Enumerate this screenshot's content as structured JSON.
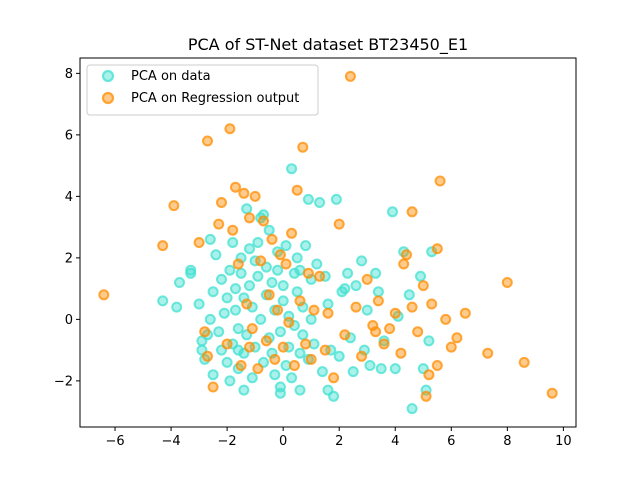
{
  "chart_data": {
    "type": "scatter",
    "title": "PCA of ST-Net dataset BT23450_E1",
    "xlabel": "",
    "ylabel": "",
    "xlim": [
      -7.25,
      10.45
    ],
    "ylim": [
      -3.5,
      8.5
    ],
    "xticks": [
      -6,
      -4,
      -2,
      0,
      2,
      4,
      6,
      8,
      10
    ],
    "yticks": [
      -2,
      0,
      2,
      4,
      6,
      8
    ],
    "xtick_labels": [
      "−6",
      "−4",
      "−2",
      "0",
      "2",
      "4",
      "6",
      "8",
      "10"
    ],
    "ytick_labels": [
      "−2",
      "0",
      "2",
      "4",
      "6",
      "8"
    ],
    "grid": false,
    "legend_position": "upper-left",
    "series": [
      {
        "name": "PCA on data",
        "color": "#40E0D0",
        "points": [
          [
            -4.3,
            0.6
          ],
          [
            -3.8,
            0.4
          ],
          [
            -3.7,
            1.2
          ],
          [
            -3.3,
            1.5
          ],
          [
            -3.3,
            1.6
          ],
          [
            -3.0,
            0.5
          ],
          [
            -2.9,
            -0.7
          ],
          [
            -2.9,
            -1.0
          ],
          [
            -2.8,
            -1.3
          ],
          [
            -2.7,
            -0.5
          ],
          [
            -2.6,
            0.0
          ],
          [
            -2.6,
            2.6
          ],
          [
            -2.5,
            -1.8
          ],
          [
            -2.5,
            0.9
          ],
          [
            -2.4,
            2.1
          ],
          [
            -2.3,
            -0.4
          ],
          [
            -2.2,
            1.3
          ],
          [
            -2.2,
            -1.0
          ],
          [
            -2.1,
            0.2
          ],
          [
            -2.0,
            -1.4
          ],
          [
            -2.0,
            0.7
          ],
          [
            -1.9,
            1.6
          ],
          [
            -1.9,
            -2.0
          ],
          [
            -1.8,
            2.5
          ],
          [
            -1.8,
            -0.8
          ],
          [
            -1.7,
            1.0
          ],
          [
            -1.7,
            0.3
          ],
          [
            -1.6,
            -1.6
          ],
          [
            -1.6,
            -0.3
          ],
          [
            -1.5,
            2.0
          ],
          [
            -1.5,
            1.5
          ],
          [
            -1.4,
            0.7
          ],
          [
            -1.4,
            -1.1
          ],
          [
            -1.3,
            3.6
          ],
          [
            -1.3,
            -0.5
          ],
          [
            -1.2,
            2.3
          ],
          [
            -1.2,
            1.1
          ],
          [
            -1.1,
            -1.9
          ],
          [
            -1.1,
            0.4
          ],
          [
            -1.0,
            1.9
          ],
          [
            -1.0,
            -0.9
          ],
          [
            -0.9,
            2.5
          ],
          [
            -0.9,
            1.4
          ],
          [
            -0.8,
            0.0
          ],
          [
            -0.8,
            3.3
          ],
          [
            -0.7,
            3.4
          ],
          [
            -0.7,
            -1.4
          ],
          [
            -0.6,
            1.7
          ],
          [
            -0.6,
            0.8
          ],
          [
            -0.5,
            -0.6
          ],
          [
            -0.5,
            2.9
          ],
          [
            -0.4,
            -1.1
          ],
          [
            -0.4,
            1.2
          ],
          [
            -0.3,
            0.3
          ],
          [
            -0.3,
            -1.8
          ],
          [
            -0.2,
            2.2
          ],
          [
            -0.2,
            1.6
          ],
          [
            -0.1,
            -0.4
          ],
          [
            -0.1,
            -2.2
          ],
          [
            0.0,
            0.6
          ],
          [
            0.0,
            1.1
          ],
          [
            0.1,
            -1.5
          ],
          [
            0.1,
            2.4
          ],
          [
            0.2,
            -0.9
          ],
          [
            0.2,
            0.1
          ],
          [
            0.3,
            4.9
          ],
          [
            0.3,
            -1.9
          ],
          [
            0.4,
            1.5
          ],
          [
            0.4,
            -0.2
          ],
          [
            0.5,
            2.0
          ],
          [
            0.5,
            0.9
          ],
          [
            0.6,
            -1.1
          ],
          [
            0.6,
            1.6
          ],
          [
            0.7,
            -0.5
          ],
          [
            0.7,
            0.4
          ],
          [
            0.8,
            2.4
          ],
          [
            0.9,
            3.9
          ],
          [
            0.9,
            -1.3
          ],
          [
            1.0,
            1.3
          ],
          [
            1.0,
            0.0
          ],
          [
            1.1,
            -0.8
          ],
          [
            1.2,
            1.8
          ],
          [
            1.3,
            3.8
          ],
          [
            1.4,
            -1.7
          ],
          [
            1.5,
            1.4
          ],
          [
            1.6,
            0.5
          ],
          [
            1.7,
            -1.0
          ],
          [
            1.8,
            -2.5
          ],
          [
            1.9,
            3.9
          ],
          [
            2.0,
            -1.2
          ],
          [
            2.1,
            0.9
          ],
          [
            2.2,
            1.0
          ],
          [
            2.3,
            1.5
          ],
          [
            2.4,
            -0.6
          ],
          [
            2.5,
            -1.7
          ],
          [
            2.6,
            1.1
          ],
          [
            2.8,
            1.9
          ],
          [
            2.9,
            -1.0
          ],
          [
            3.0,
            0.3
          ],
          [
            3.1,
            -1.5
          ],
          [
            3.3,
            1.5
          ],
          [
            3.4,
            0.9
          ],
          [
            3.5,
            -1.6
          ],
          [
            3.6,
            -0.7
          ],
          [
            3.9,
            3.5
          ],
          [
            4.0,
            -1.6
          ],
          [
            4.1,
            0.1
          ],
          [
            4.3,
            2.2
          ],
          [
            4.5,
            0.8
          ],
          [
            4.6,
            -2.9
          ],
          [
            4.9,
            1.4
          ],
          [
            5.0,
            -1.6
          ],
          [
            5.1,
            -2.3
          ],
          [
            5.3,
            2.2
          ],
          [
            5.2,
            -0.7
          ],
          [
            -1.4,
            -2.3
          ],
          [
            -0.1,
            -2.4
          ],
          [
            0.6,
            -2.3
          ],
          [
            1.6,
            -2.3
          ],
          [
            -1.6,
            -1.0
          ]
        ]
      },
      {
        "name": "PCA on Regression output",
        "color": "#FF8C00",
        "points": [
          [
            -6.4,
            0.8
          ],
          [
            -4.3,
            2.4
          ],
          [
            -3.9,
            3.7
          ],
          [
            -3.0,
            2.5
          ],
          [
            -2.8,
            -0.4
          ],
          [
            -2.7,
            -1.2
          ],
          [
            -2.7,
            5.8
          ],
          [
            -2.5,
            -2.2
          ],
          [
            -2.3,
            3.1
          ],
          [
            -2.2,
            3.8
          ],
          [
            -2.0,
            -0.8
          ],
          [
            -1.9,
            6.2
          ],
          [
            -1.8,
            2.9
          ],
          [
            -1.7,
            4.3
          ],
          [
            -1.6,
            1.8
          ],
          [
            -1.5,
            -1.5
          ],
          [
            -1.4,
            4.1
          ],
          [
            -1.3,
            0.5
          ],
          [
            -1.2,
            -0.9
          ],
          [
            -1.2,
            3.3
          ],
          [
            -1.1,
            -0.3
          ],
          [
            -1.0,
            4.0
          ],
          [
            -0.9,
            -1.6
          ],
          [
            -0.8,
            1.9
          ],
          [
            -0.7,
            3.2
          ],
          [
            -0.6,
            -0.7
          ],
          [
            -0.5,
            0.8
          ],
          [
            -0.4,
            2.6
          ],
          [
            -0.3,
            -1.3
          ],
          [
            -0.2,
            0.3
          ],
          [
            -0.1,
            2.1
          ],
          [
            0.0,
            -0.9
          ],
          [
            0.1,
            1.8
          ],
          [
            0.2,
            -0.1
          ],
          [
            0.3,
            2.8
          ],
          [
            0.4,
            -1.5
          ],
          [
            0.5,
            4.2
          ],
          [
            0.6,
            0.6
          ],
          [
            0.7,
            5.6
          ],
          [
            0.8,
            -0.8
          ],
          [
            0.9,
            1.5
          ],
          [
            1.0,
            -1.3
          ],
          [
            1.1,
            0.3
          ],
          [
            1.3,
            1.4
          ],
          [
            1.5,
            -1.0
          ],
          [
            1.6,
            0.2
          ],
          [
            1.8,
            -1.9
          ],
          [
            2.0,
            3.1
          ],
          [
            2.2,
            -0.5
          ],
          [
            2.4,
            7.9
          ],
          [
            2.6,
            0.4
          ],
          [
            2.8,
            -1.2
          ],
          [
            3.0,
            1.3
          ],
          [
            3.2,
            -0.2
          ],
          [
            3.4,
            0.6
          ],
          [
            3.6,
            -0.8
          ],
          [
            3.8,
            -0.3
          ],
          [
            4.0,
            0.2
          ],
          [
            4.2,
            -1.1
          ],
          [
            4.3,
            1.8
          ],
          [
            4.4,
            2.1
          ],
          [
            4.6,
            0.4
          ],
          [
            4.8,
            -0.4
          ],
          [
            5.0,
            1.1
          ],
          [
            5.1,
            -2.5
          ],
          [
            5.3,
            0.5
          ],
          [
            5.5,
            2.3
          ],
          [
            5.6,
            4.5
          ],
          [
            5.8,
            0.0
          ],
          [
            6.0,
            -0.9
          ],
          [
            6.2,
            -0.6
          ],
          [
            6.5,
            0.2
          ],
          [
            7.3,
            -1.1
          ],
          [
            8.0,
            1.2
          ],
          [
            8.6,
            -1.4
          ],
          [
            9.6,
            -2.4
          ],
          [
            4.6,
            3.5
          ],
          [
            5.2,
            -1.8
          ],
          [
            5.5,
            -1.5
          ],
          [
            3.3,
            -0.4
          ]
        ]
      }
    ]
  }
}
